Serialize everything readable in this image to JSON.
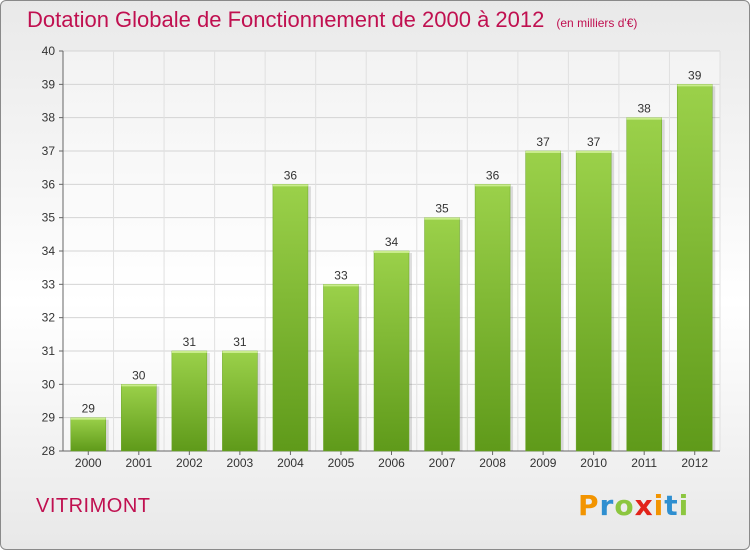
{
  "header": {
    "title": "Dotation Globale de Fonctionnement de 2000 à 2012",
    "subtitle": "(en milliers d'€)"
  },
  "footer": {
    "commune": "VITRIMONT",
    "logo": {
      "letters": [
        "P",
        "r",
        "o",
        "x",
        "i",
        "t",
        "i"
      ],
      "colors": [
        "#f29400",
        "#2f8fd0",
        "#8cc63f",
        "#e2231a",
        "#f29400",
        "#2f8fd0",
        "#8cc63f"
      ]
    }
  },
  "chart_data": {
    "type": "bar",
    "title": "Dotation Globale de Fonctionnement de 2000 à 2012",
    "subtitle": "(en milliers d'€)",
    "categories": [
      "2000",
      "2001",
      "2002",
      "2003",
      "2004",
      "2005",
      "2006",
      "2007",
      "2008",
      "2009",
      "2010",
      "2011",
      "2012"
    ],
    "values": [
      29,
      30,
      31,
      31,
      36,
      33,
      34,
      35,
      36,
      37,
      37,
      38,
      39
    ],
    "ylim": [
      28,
      40
    ],
    "yticks": [
      28,
      29,
      30,
      31,
      32,
      33,
      34,
      35,
      36,
      37,
      38,
      39,
      40
    ],
    "grid": true,
    "bar_color": "#7dbb2e",
    "show_value_labels": true
  }
}
